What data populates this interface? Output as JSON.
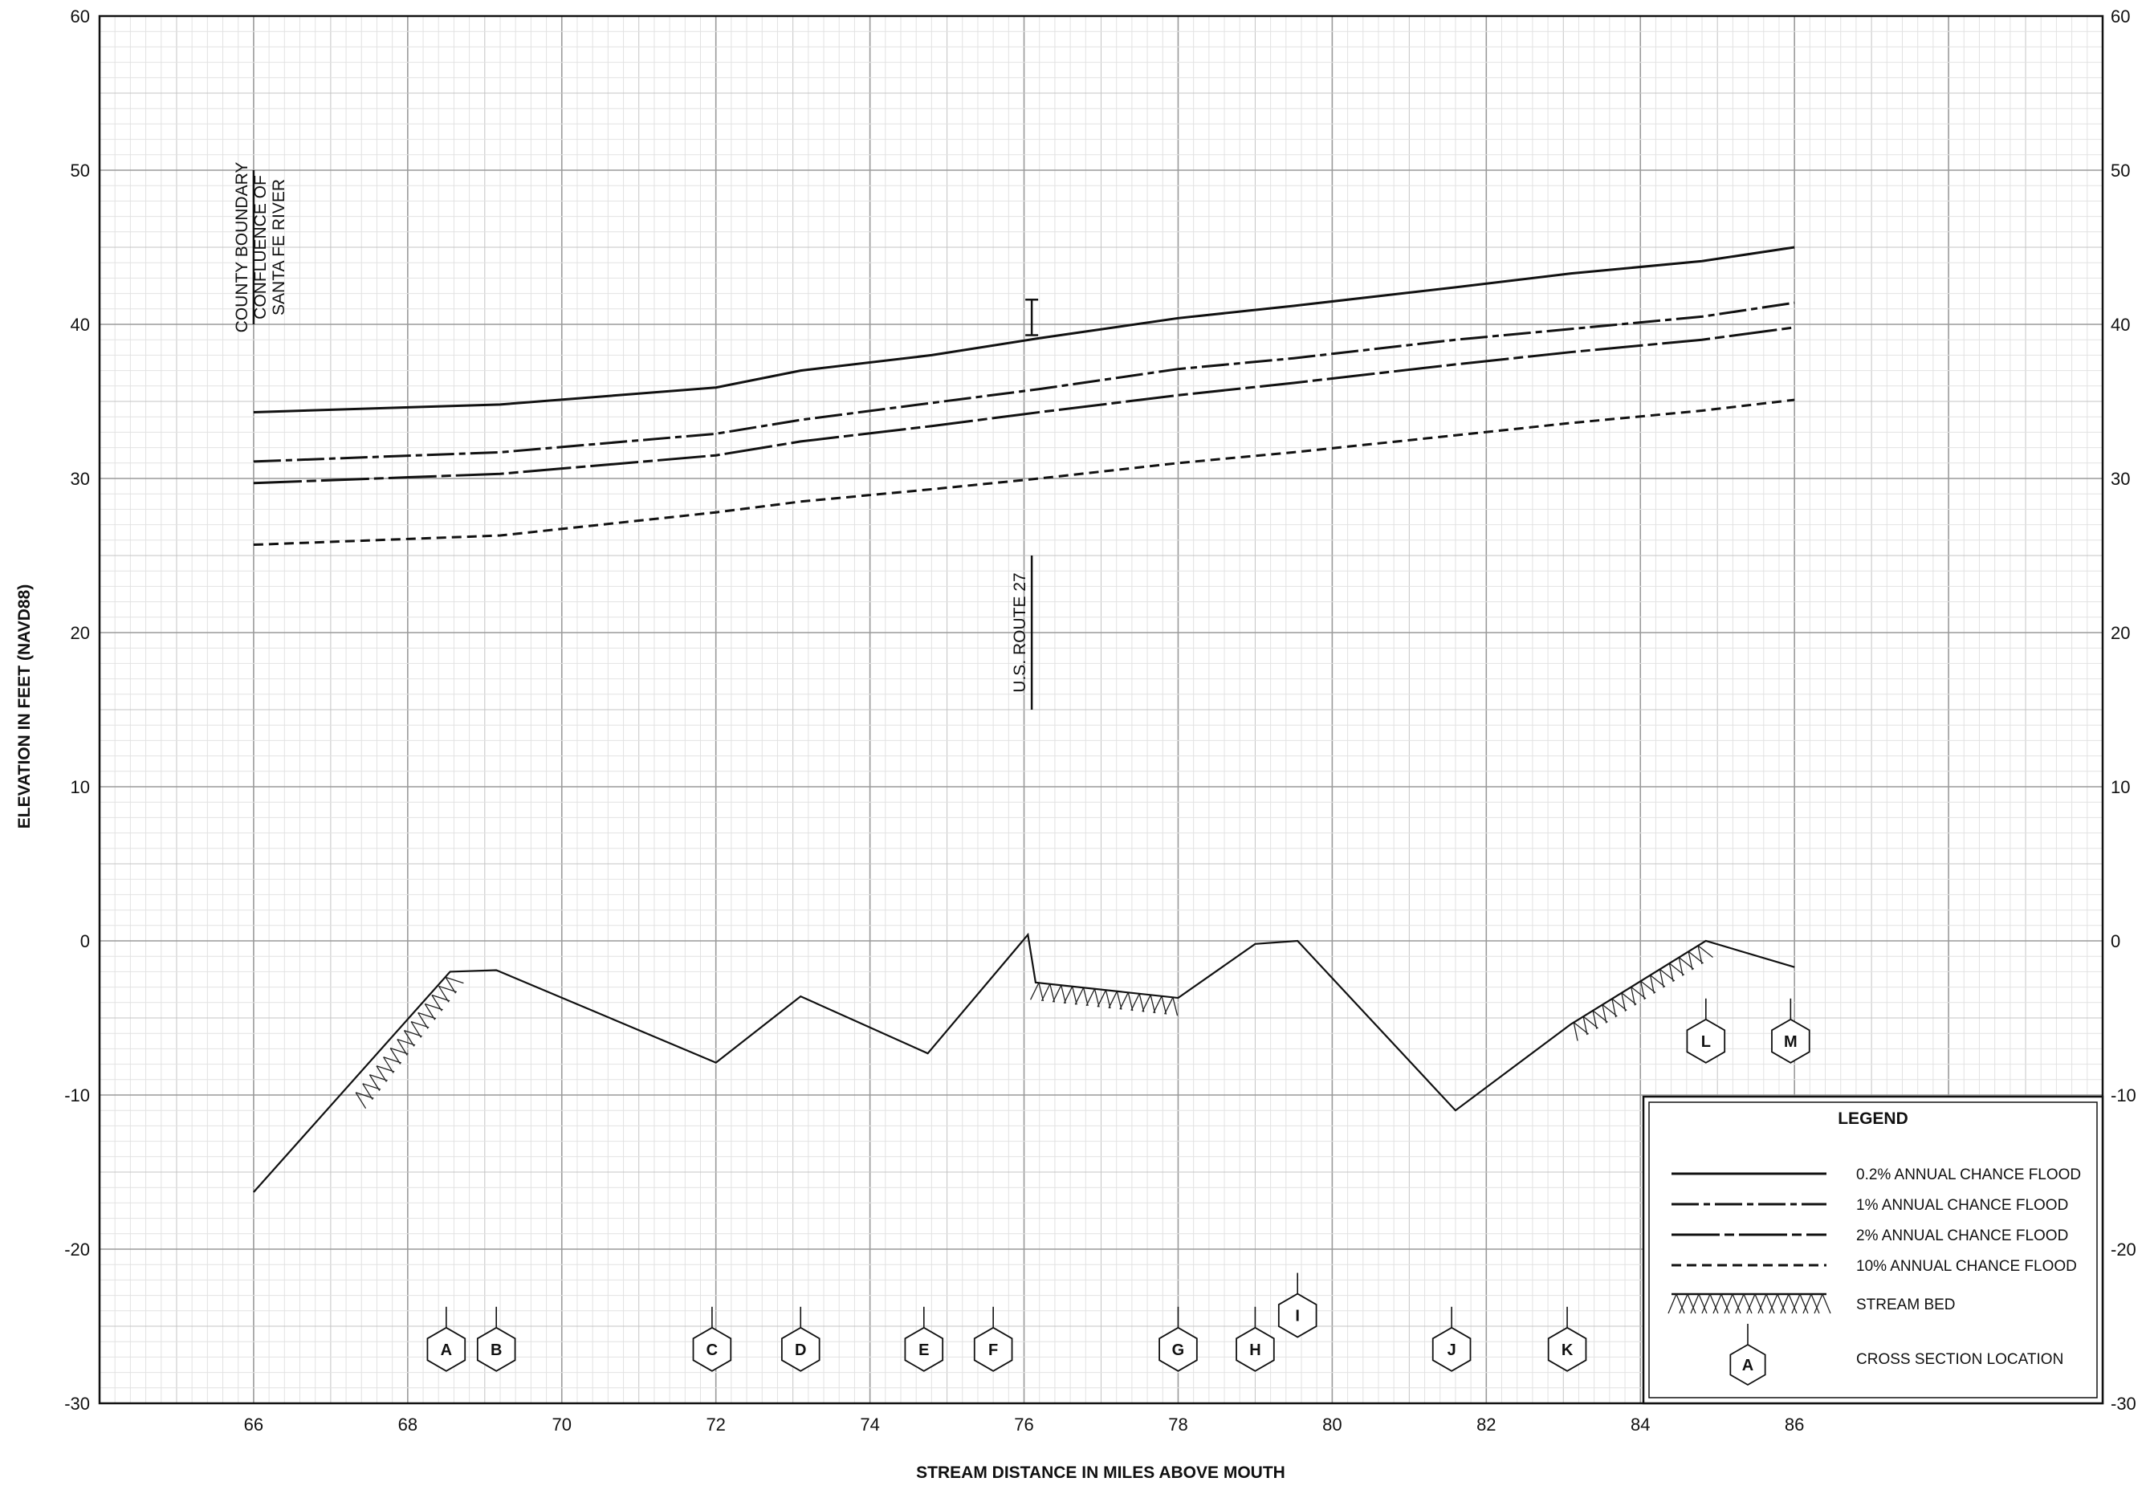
{
  "chart_data": {
    "type": "line",
    "title": "",
    "xlabel": "STREAM DISTANCE IN MILES ABOVE MOUTH",
    "ylabel": "ELEVATION IN FEET (NAVD88)",
    "xlim": [
      64,
      90
    ],
    "ylim": [
      -30,
      60
    ],
    "x_ticks": [
      66,
      68,
      70,
      72,
      74,
      76,
      78,
      80,
      82,
      84,
      86
    ],
    "y_ticks": [
      -30,
      -20,
      -10,
      0,
      10,
      20,
      30,
      40,
      50,
      60
    ],
    "grid": true,
    "series": [
      {
        "name": "0.2% ANNUAL CHANCE FLOOD",
        "style": "solid",
        "x": [
          66,
          69.2,
          72,
          73.1,
          74.8,
          76.2,
          78,
          79.5,
          81.6,
          83.1,
          84.8,
          86
        ],
        "y": [
          34.3,
          34.8,
          35.9,
          37.0,
          38.0,
          39.1,
          40.4,
          41.2,
          42.4,
          43.3,
          44.1,
          45.0
        ]
      },
      {
        "name": "1% ANNUAL CHANCE FLOOD",
        "style": "long-dash-dot",
        "x": [
          66,
          69.2,
          72,
          73.1,
          74.8,
          76.2,
          78,
          79.5,
          81.6,
          83.1,
          84.8,
          86
        ],
        "y": [
          31.1,
          31.7,
          32.9,
          33.8,
          34.9,
          35.8,
          37.1,
          37.8,
          39.0,
          39.7,
          40.5,
          41.4
        ]
      },
      {
        "name": "2% ANNUAL CHANCE FLOOD",
        "style": "long-short-dash",
        "x": [
          66,
          69.2,
          72,
          73.1,
          74.8,
          76.2,
          78,
          79.5,
          81.6,
          83.1,
          84.8,
          86
        ],
        "y": [
          29.7,
          30.3,
          31.5,
          32.4,
          33.4,
          34.3,
          35.4,
          36.2,
          37.4,
          38.2,
          39.0,
          39.8
        ]
      },
      {
        "name": "10% ANNUAL CHANCE FLOOD",
        "style": "dashed",
        "x": [
          66,
          69.2,
          72,
          73.1,
          74.8,
          76.2,
          78,
          79.5,
          81.6,
          83.1,
          84.8,
          86
        ],
        "y": [
          25.7,
          26.3,
          27.8,
          28.5,
          29.3,
          30.0,
          31.0,
          31.7,
          32.8,
          33.6,
          34.4,
          35.1
        ]
      },
      {
        "name": "STREAM BED",
        "style": "solid",
        "x": [
          66,
          68.55,
          69.15,
          72,
          73.1,
          74.75,
          76.05,
          76.15,
          78,
          79.0,
          79.55,
          81.6,
          83.1,
          84.85,
          86
        ],
        "y": [
          -16.3,
          -2.0,
          -1.9,
          -7.9,
          -3.6,
          -7.3,
          0.4,
          -2.7,
          -3.7,
          -0.2,
          0.0,
          -11.0,
          -5.4,
          0.0,
          -1.7
        ]
      }
    ],
    "hatch_segments": [
      {
        "x": [
          67.3,
          68.55
        ],
        "y": [
          -10.0,
          -2.0
        ]
      },
      {
        "x": [
          76.15,
          78
        ],
        "y": [
          -2.7,
          -3.7
        ]
      },
      {
        "x": [
          83.1,
          84.85
        ],
        "y": [
          -5.4,
          0.0
        ]
      }
    ],
    "cross_sections": [
      {
        "label": "A",
        "x": 68.5,
        "y": -26.5
      },
      {
        "label": "B",
        "x": 69.15,
        "y": -26.5
      },
      {
        "label": "C",
        "x": 71.95,
        "y": -26.5
      },
      {
        "label": "D",
        "x": 73.1,
        "y": -26.5
      },
      {
        "label": "E",
        "x": 74.7,
        "y": -26.5
      },
      {
        "label": "F",
        "x": 75.6,
        "y": -26.5
      },
      {
        "label": "G",
        "x": 78,
        "y": -26.5
      },
      {
        "label": "H",
        "x": 79.0,
        "y": -26.5
      },
      {
        "label": "I",
        "x": 79.55,
        "y": -24.3
      },
      {
        "label": "J",
        "x": 81.55,
        "y": -26.5
      },
      {
        "label": "K",
        "x": 83.05,
        "y": -26.5
      },
      {
        "label": "L",
        "x": 84.85,
        "y": -6.5
      },
      {
        "label": "M",
        "x": 85.95,
        "y": -6.5
      }
    ],
    "annotations": [
      {
        "lines": [
          "COUNTY BOUNDARY",
          "CONFLUENCE OF",
          "SANTA FE RIVER"
        ],
        "x": 66,
        "y_range": [
          40,
          50
        ]
      },
      {
        "lines": [
          "U.S. ROUTE 27"
        ],
        "x": 76.1,
        "y_range": [
          15,
          25
        ]
      }
    ],
    "bridge_marker": {
      "x": 76.1,
      "y_range": [
        39.3,
        41.6
      ]
    },
    "legend": {
      "title": "LEGEND",
      "placement": "bottom-right",
      "entries": [
        {
          "label": "0.2% ANNUAL CHANCE FLOOD",
          "style": "solid"
        },
        {
          "label": "1% ANNUAL CHANCE FLOOD",
          "style": "long-dash-dot"
        },
        {
          "label": "2% ANNUAL CHANCE FLOOD",
          "style": "long-short-dash"
        },
        {
          "label": "10% ANNUAL CHANCE FLOOD",
          "style": "dashed"
        },
        {
          "label": "STREAM BED",
          "style": "hatch"
        },
        {
          "label": "CROSS SECTION LOCATION",
          "style": "hexagon",
          "symbol_label": "A"
        }
      ]
    }
  }
}
